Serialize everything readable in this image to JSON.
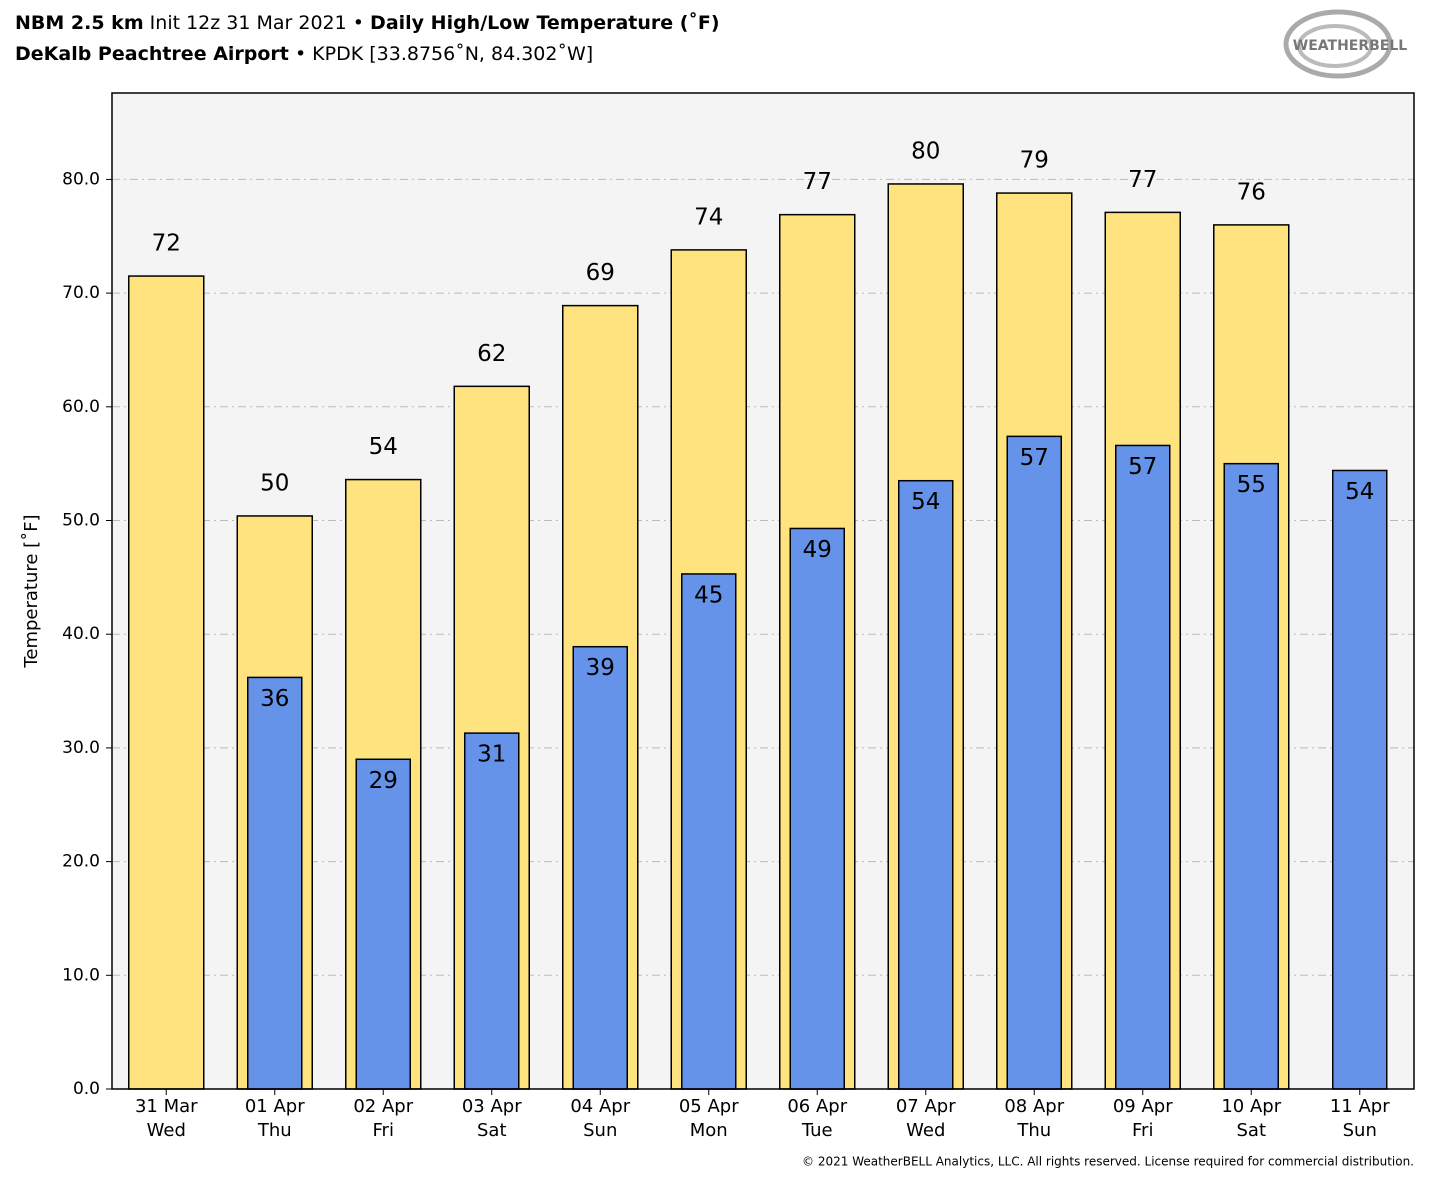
{
  "header": {
    "model": "NBM 2.5 km",
    "init": "Init 12z 31 Mar 2021",
    "bullet": "•",
    "title": "Daily High/Low Temperature (˚F)",
    "station": "DeKalb Peachtree Airport",
    "station_info": "• KPDK [33.8756˚N, 84.302˚W]",
    "logo": "WEATHERBELL"
  },
  "chart_data": {
    "type": "bar",
    "ylabel": "Temperature [˚F]",
    "categories": [
      "31 Mar",
      "01 Apr",
      "02 Apr",
      "03 Apr",
      "04 Apr",
      "05 Apr",
      "06 Apr",
      "07 Apr",
      "08 Apr",
      "09 Apr",
      "10 Apr",
      "11 Apr"
    ],
    "weekdays": [
      "Wed",
      "Thu",
      "Fri",
      "Sat",
      "Sun",
      "Mon",
      "Tue",
      "Wed",
      "Thu",
      "Fri",
      "Sat",
      "Sun"
    ],
    "series": [
      {
        "color": "#fee37e",
        "values": [
          71.5,
          50.4,
          53.6,
          61.8,
          68.9,
          73.8,
          76.9,
          79.6,
          78.8,
          77.1,
          76.0,
          null
        ],
        "value_labels": [
          "72",
          "50",
          "54",
          "62",
          "69",
          "74",
          "77",
          "80",
          "79",
          "77",
          "76",
          null
        ]
      },
      {
        "color": "#6693ea",
        "values": [
          null,
          36.2,
          29.0,
          31.3,
          38.9,
          45.3,
          49.3,
          53.5,
          57.4,
          56.6,
          55.0,
          54.4
        ],
        "value_labels": [
          null,
          "36",
          "29",
          "31",
          "39",
          "45",
          "49",
          "54",
          "57",
          "57",
          "55",
          "54"
        ]
      }
    ],
    "ylim": [
      0,
      87.6
    ],
    "yticks": [
      {
        "value": 0,
        "label": "0.0"
      },
      {
        "value": 10,
        "label": "10.0"
      },
      {
        "value": 20,
        "label": "20.0"
      },
      {
        "value": 30,
        "label": "30.0"
      },
      {
        "value": 40,
        "label": "40.0"
      },
      {
        "value": 50,
        "label": "50.0"
      },
      {
        "value": 60,
        "label": "60.0"
      },
      {
        "value": 70,
        "label": "70.0"
      },
      {
        "value": 80,
        "label": "80.0"
      }
    ],
    "grid": true
  },
  "footer": "© 2021 WeatherBELL Analytics, LLC. All rights reserved. License required for commercial distribution."
}
